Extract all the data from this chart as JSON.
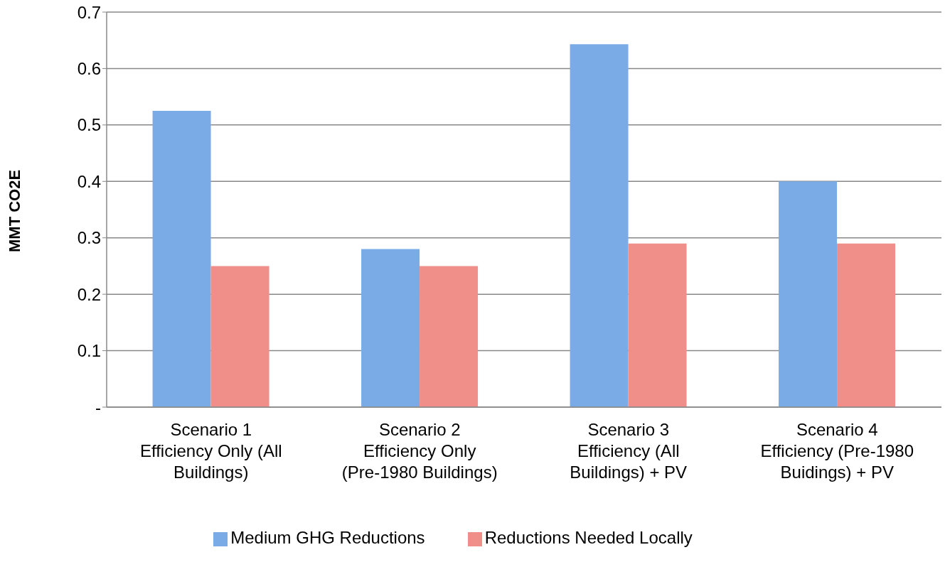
{
  "chart_data": {
    "type": "bar",
    "ylabel": "MMT CO2E",
    "categories": [
      "Scenario 1\nEfficiency Only (All\nBuildings)",
      "Scenario 2\nEfficiency Only\n(Pre-1980 Buildings)",
      "Scenario 3\nEfficiency (All\nBuildings) + PV",
      "Scenario 4\nEfficiency (Pre-1980\nBuidings) + PV"
    ],
    "series": [
      {
        "name": "Medium GHG Reductions",
        "color": "#7aabe6",
        "values": [
          0.525,
          0.28,
          0.643,
          0.4
        ]
      },
      {
        "name": "Reductions Needed Locally",
        "color": "#f08e89",
        "values": [
          0.25,
          0.25,
          0.29,
          0.29
        ]
      }
    ],
    "ylim": [
      0,
      0.7
    ],
    "yticks": [
      {
        "value": 0,
        "label": "-"
      },
      0.1,
      0.2,
      0.3,
      0.4,
      0.5,
      0.6,
      0.7
    ],
    "grid": "y",
    "legend": "bottom"
  }
}
